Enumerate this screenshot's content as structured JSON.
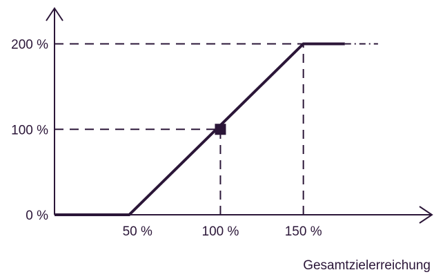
{
  "colors": {
    "ink": "#2b1638",
    "background": "#ffffff"
  },
  "chart_data": {
    "type": "line",
    "title": "",
    "xlabel": "Gesamtzielerreichung",
    "ylabel": "",
    "x_ticks": [
      {
        "value": 50,
        "label": "50 %"
      },
      {
        "value": 100,
        "label": "100 %"
      },
      {
        "value": 150,
        "label": "150 %"
      }
    ],
    "y_ticks": [
      {
        "value": 0,
        "label": "0 %"
      },
      {
        "value": 100,
        "label": "100 %"
      },
      {
        "value": 200,
        "label": "200 %"
      }
    ],
    "xlim": [
      0,
      225
    ],
    "ylim": [
      0,
      240
    ],
    "series": [
      {
        "x": [
          0,
          45,
          150,
          175
        ],
        "y": [
          0,
          0,
          200,
          200
        ]
      }
    ],
    "marker": {
      "x": 100,
      "y": 100,
      "shape": "square"
    },
    "reference_lines": [
      {
        "from": [
          0,
          200
        ],
        "to": [
          150,
          200
        ],
        "style": "dashed"
      },
      {
        "from": [
          175,
          200
        ],
        "to": [
          195,
          200
        ],
        "style": "dash-dot"
      },
      {
        "from": [
          0,
          100
        ],
        "to": [
          100,
          100
        ],
        "style": "dashed"
      },
      {
        "from": [
          100,
          0
        ],
        "to": [
          100,
          100
        ],
        "style": "dashed"
      },
      {
        "from": [
          150,
          0
        ],
        "to": [
          150,
          200
        ],
        "style": "dashed"
      }
    ]
  }
}
